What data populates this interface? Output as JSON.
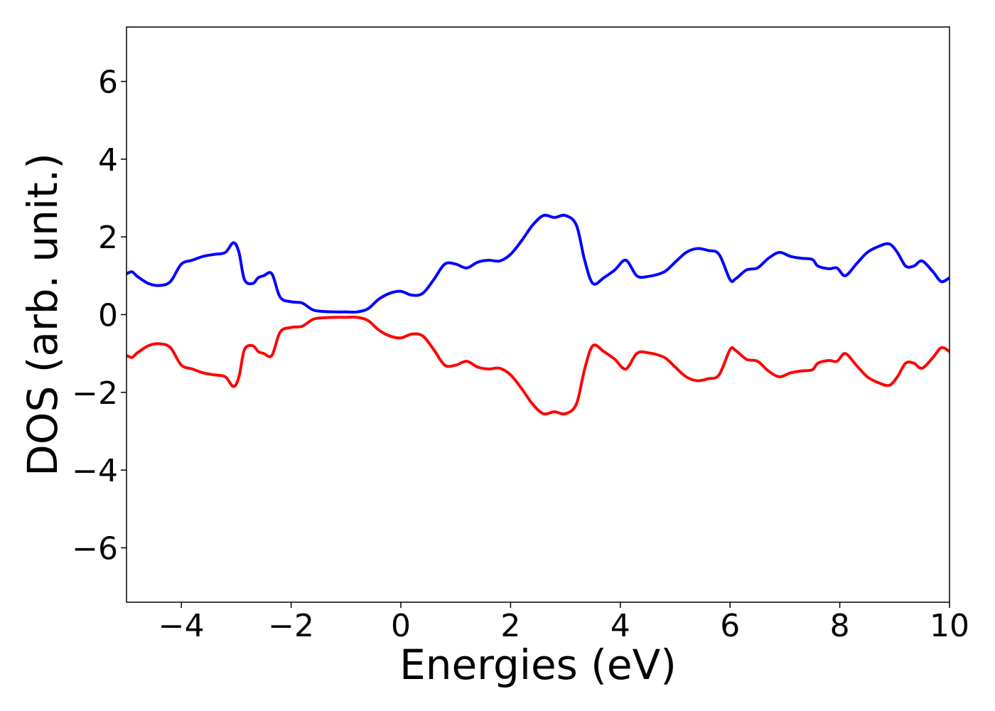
{
  "chart_data": {
    "type": "line",
    "title": "",
    "xlabel": "Energies (eV)",
    "ylabel": "DOS (arb. unit.)",
    "xlim": [
      -5,
      10
    ],
    "ylim": [
      -7.4,
      7.4
    ],
    "xticks": [
      -4,
      -2,
      0,
      2,
      4,
      6,
      8,
      10
    ],
    "yticks": [
      -6,
      -4,
      -2,
      0,
      2,
      4,
      6
    ],
    "grid": false,
    "legend": "none",
    "series": [
      {
        "color": "#0000ff",
        "x": [
          -5.0,
          -4.9,
          -4.8,
          -4.6,
          -4.4,
          -4.2,
          -4.0,
          -3.8,
          -3.6,
          -3.4,
          -3.2,
          -3.05,
          -2.95,
          -2.85,
          -2.7,
          -2.6,
          -2.5,
          -2.35,
          -2.2,
          -2.0,
          -1.8,
          -1.6,
          -1.4,
          -1.2,
          -1.0,
          -0.8,
          -0.6,
          -0.4,
          -0.2,
          0.0,
          0.2,
          0.4,
          0.6,
          0.8,
          1.0,
          1.2,
          1.4,
          1.6,
          1.8,
          2.0,
          2.2,
          2.4,
          2.6,
          2.8,
          3.0,
          3.2,
          3.35,
          3.5,
          3.7,
          3.9,
          4.1,
          4.3,
          4.5,
          4.8,
          5.0,
          5.2,
          5.4,
          5.6,
          5.8,
          6.0,
          6.1,
          6.3,
          6.5,
          6.7,
          6.9,
          7.1,
          7.3,
          7.5,
          7.6,
          7.8,
          7.95,
          8.1,
          8.3,
          8.5,
          8.7,
          8.9,
          9.05,
          9.2,
          9.35,
          9.5,
          9.7,
          9.85,
          10.0
        ],
        "y": [
          1.05,
          1.1,
          0.98,
          0.8,
          0.75,
          0.85,
          1.3,
          1.4,
          1.5,
          1.55,
          1.6,
          1.85,
          1.6,
          0.9,
          0.8,
          0.95,
          1.0,
          1.05,
          0.45,
          0.33,
          0.3,
          0.12,
          0.08,
          0.07,
          0.07,
          0.07,
          0.15,
          0.4,
          0.55,
          0.6,
          0.5,
          0.55,
          0.9,
          1.3,
          1.3,
          1.2,
          1.35,
          1.4,
          1.38,
          1.55,
          1.9,
          2.3,
          2.55,
          2.5,
          2.55,
          2.3,
          1.4,
          0.8,
          0.95,
          1.15,
          1.4,
          1.0,
          0.98,
          1.1,
          1.35,
          1.6,
          1.7,
          1.65,
          1.55,
          0.9,
          0.92,
          1.15,
          1.2,
          1.45,
          1.6,
          1.5,
          1.45,
          1.42,
          1.25,
          1.18,
          1.2,
          1.0,
          1.3,
          1.6,
          1.75,
          1.82,
          1.6,
          1.25,
          1.25,
          1.38,
          1.1,
          0.85,
          0.95
        ]
      },
      {
        "color": "#ff0000",
        "x": [
          -5.0,
          -4.9,
          -4.8,
          -4.6,
          -4.4,
          -4.2,
          -4.0,
          -3.8,
          -3.6,
          -3.4,
          -3.2,
          -3.05,
          -2.95,
          -2.85,
          -2.7,
          -2.6,
          -2.5,
          -2.35,
          -2.2,
          -2.0,
          -1.8,
          -1.6,
          -1.4,
          -1.2,
          -1.0,
          -0.8,
          -0.6,
          -0.4,
          -0.2,
          0.0,
          0.2,
          0.4,
          0.6,
          0.8,
          1.0,
          1.2,
          1.4,
          1.6,
          1.8,
          2.0,
          2.2,
          2.4,
          2.6,
          2.8,
          3.0,
          3.2,
          3.35,
          3.5,
          3.7,
          3.9,
          4.1,
          4.3,
          4.5,
          4.8,
          5.0,
          5.2,
          5.4,
          5.6,
          5.8,
          6.0,
          6.1,
          6.3,
          6.5,
          6.7,
          6.9,
          7.1,
          7.3,
          7.5,
          7.6,
          7.8,
          7.95,
          8.1,
          8.3,
          8.5,
          8.7,
          8.9,
          9.05,
          9.2,
          9.35,
          9.5,
          9.7,
          9.85,
          10.0
        ],
        "y": [
          -1.05,
          -1.1,
          -0.98,
          -0.8,
          -0.75,
          -0.85,
          -1.3,
          -1.4,
          -1.5,
          -1.55,
          -1.6,
          -1.85,
          -1.6,
          -0.9,
          -0.8,
          -0.95,
          -1.0,
          -1.05,
          -0.45,
          -0.33,
          -0.3,
          -0.12,
          -0.08,
          -0.07,
          -0.07,
          -0.07,
          -0.15,
          -0.4,
          -0.55,
          -0.6,
          -0.5,
          -0.55,
          -0.9,
          -1.3,
          -1.3,
          -1.2,
          -1.35,
          -1.4,
          -1.38,
          -1.55,
          -1.9,
          -2.3,
          -2.55,
          -2.5,
          -2.55,
          -2.3,
          -1.4,
          -0.8,
          -0.95,
          -1.15,
          -1.4,
          -1.0,
          -0.98,
          -1.1,
          -1.35,
          -1.6,
          -1.7,
          -1.65,
          -1.55,
          -0.9,
          -0.92,
          -1.15,
          -1.2,
          -1.45,
          -1.6,
          -1.5,
          -1.45,
          -1.42,
          -1.25,
          -1.18,
          -1.2,
          -1.0,
          -1.3,
          -1.6,
          -1.75,
          -1.82,
          -1.6,
          -1.25,
          -1.25,
          -1.38,
          -1.1,
          -0.85,
          -0.95
        ]
      }
    ]
  }
}
